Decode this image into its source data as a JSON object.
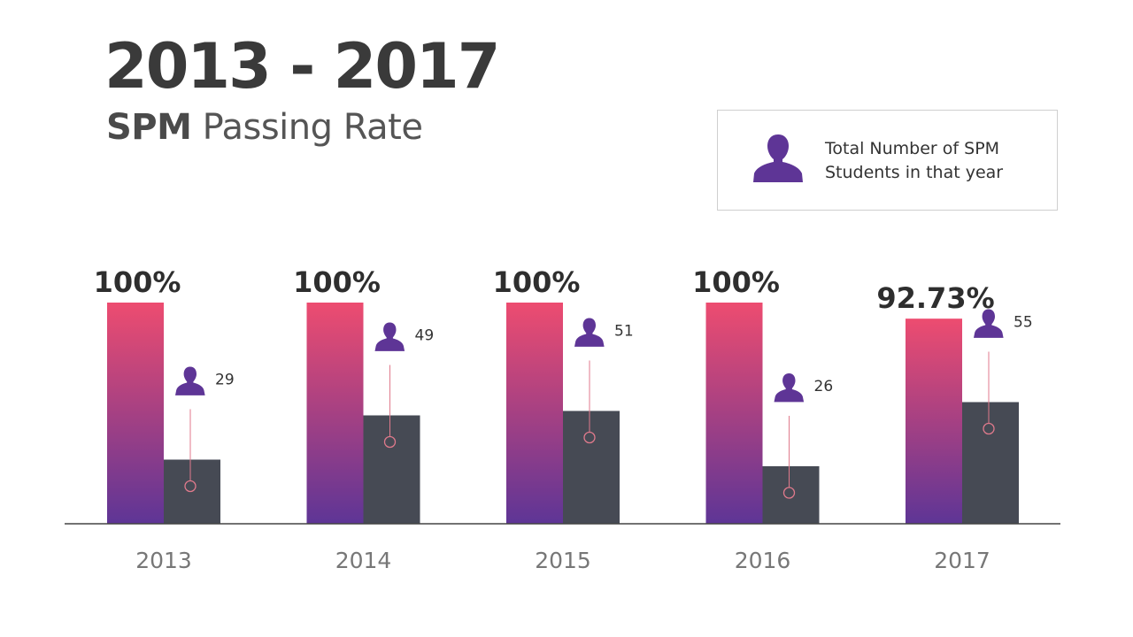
{
  "header": {
    "title": "2013 - 2017",
    "subtitle_bold": "SPM",
    "subtitle_rest": "Passing Rate"
  },
  "legend": {
    "icon": "person-icon",
    "text": "Total Number of SPM Students in that year"
  },
  "colors": {
    "gradient_top": "#ED4C70",
    "gradient_bottom": "#5E3596",
    "dark_bar": "#464A54",
    "icon": "#5E3596",
    "marker": "#E07A8C",
    "axis": "#444444",
    "title": "#3A3A3A"
  },
  "chart_data": {
    "type": "bar",
    "categories": [
      "2013",
      "2014",
      "2015",
      "2016",
      "2017"
    ],
    "series": [
      {
        "values": [
          100,
          100,
          100,
          100,
          92.73
        ],
        "labels": [
          "100%",
          "100%",
          "100%",
          "100%",
          "92.73%"
        ]
      },
      {
        "values": [
          29,
          49,
          51,
          26,
          55
        ]
      }
    ],
    "xlabel": "",
    "ylabel": "",
    "grid": false,
    "legend_position": "top-right"
  }
}
